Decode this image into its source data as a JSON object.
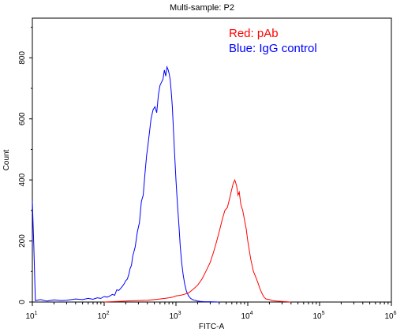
{
  "chart_data": {
    "type": "line",
    "title": "Multi-sample: P2",
    "xlabel": "FITC-A",
    "ylabel": "Count",
    "x_scale": "log",
    "xlim": [
      10,
      1000000
    ],
    "ylim": [
      0,
      930
    ],
    "y_ticks": [
      0,
      200,
      400,
      600,
      800
    ],
    "y_tick_labels": [
      "0",
      "200",
      "400",
      "600",
      "800"
    ],
    "x_ticks": [
      10,
      100,
      1000,
      10000,
      100000,
      1000000
    ],
    "x_tick_labels": [
      {
        "base": "10",
        "exp": "1"
      },
      {
        "base": "10",
        "exp": "2"
      },
      {
        "base": "10",
        "exp": "3"
      },
      {
        "base": "10",
        "exp": "4"
      },
      {
        "base": "10",
        "exp": "5"
      },
      {
        "base": "10",
        "exp": "6"
      }
    ],
    "grid": false,
    "legend_placement": "top-right",
    "annotations": [
      {
        "text": "Red: pAb",
        "color": "#ff0000"
      },
      {
        "text": "Blue: IgG control",
        "color": "#0000ff"
      }
    ],
    "series": [
      {
        "color": "#0000ff",
        "x": [
          10,
          10.5,
          11,
          13,
          16,
          20,
          25,
          30,
          40,
          50,
          60,
          70,
          80,
          90,
          100,
          110,
          120,
          130,
          140,
          150,
          160,
          170,
          180,
          190,
          200,
          210,
          220,
          230,
          240,
          250,
          270,
          290,
          310,
          330,
          350,
          370,
          390,
          410,
          430,
          450,
          480,
          510,
          540,
          570,
          600,
          630,
          660,
          690,
          720,
          750,
          780,
          800,
          830,
          860,
          890,
          920,
          950,
          1000,
          1050,
          1100,
          1150,
          1200,
          1260,
          1320,
          1400,
          1500,
          1600,
          1700,
          1800,
          1900,
          2000,
          2200,
          2500,
          3000,
          4000
        ],
        "y": [
          330,
          180,
          5,
          8,
          3,
          7,
          5,
          6,
          10,
          8,
          12,
          9,
          14,
          12,
          18,
          16,
          20,
          25,
          22,
          40,
          38,
          45,
          52,
          60,
          70,
          75,
          90,
          110,
          120,
          150,
          180,
          230,
          260,
          330,
          350,
          420,
          480,
          520,
          560,
          600,
          630,
          640,
          620,
          680,
          710,
          720,
          730,
          760,
          740,
          770,
          760,
          750,
          730,
          690,
          640,
          570,
          500,
          400,
          320,
          250,
          180,
          130,
          90,
          60,
          35,
          20,
          12,
          8,
          6,
          5,
          3,
          2,
          1,
          1,
          0
        ]
      },
      {
        "color": "#ff0000",
        "x": [
          100,
          150,
          200,
          300,
          400,
          500,
          600,
          700,
          800,
          900,
          1000,
          1150,
          1300,
          1500,
          1700,
          2000,
          2300,
          2600,
          3000,
          3300,
          3600,
          4000,
          4400,
          4800,
          5200,
          5600,
          6000,
          6300,
          6600,
          7000,
          7300,
          7600,
          8000,
          8500,
          9000,
          9500,
          10000,
          11000,
          12000,
          13000,
          14000,
          15000,
          16000,
          17000,
          18000,
          20000,
          22000,
          25000,
          30000,
          40000
        ],
        "y": [
          0,
          2,
          3,
          5,
          6,
          8,
          10,
          12,
          14,
          16,
          20,
          22,
          25,
          30,
          40,
          55,
          75,
          100,
          130,
          160,
          190,
          230,
          270,
          300,
          310,
          340,
          370,
          390,
          400,
          380,
          350,
          360,
          320,
          300,
          270,
          240,
          200,
          140,
          100,
          80,
          60,
          40,
          25,
          15,
          10,
          8,
          5,
          3,
          2,
          0
        ]
      }
    ]
  }
}
